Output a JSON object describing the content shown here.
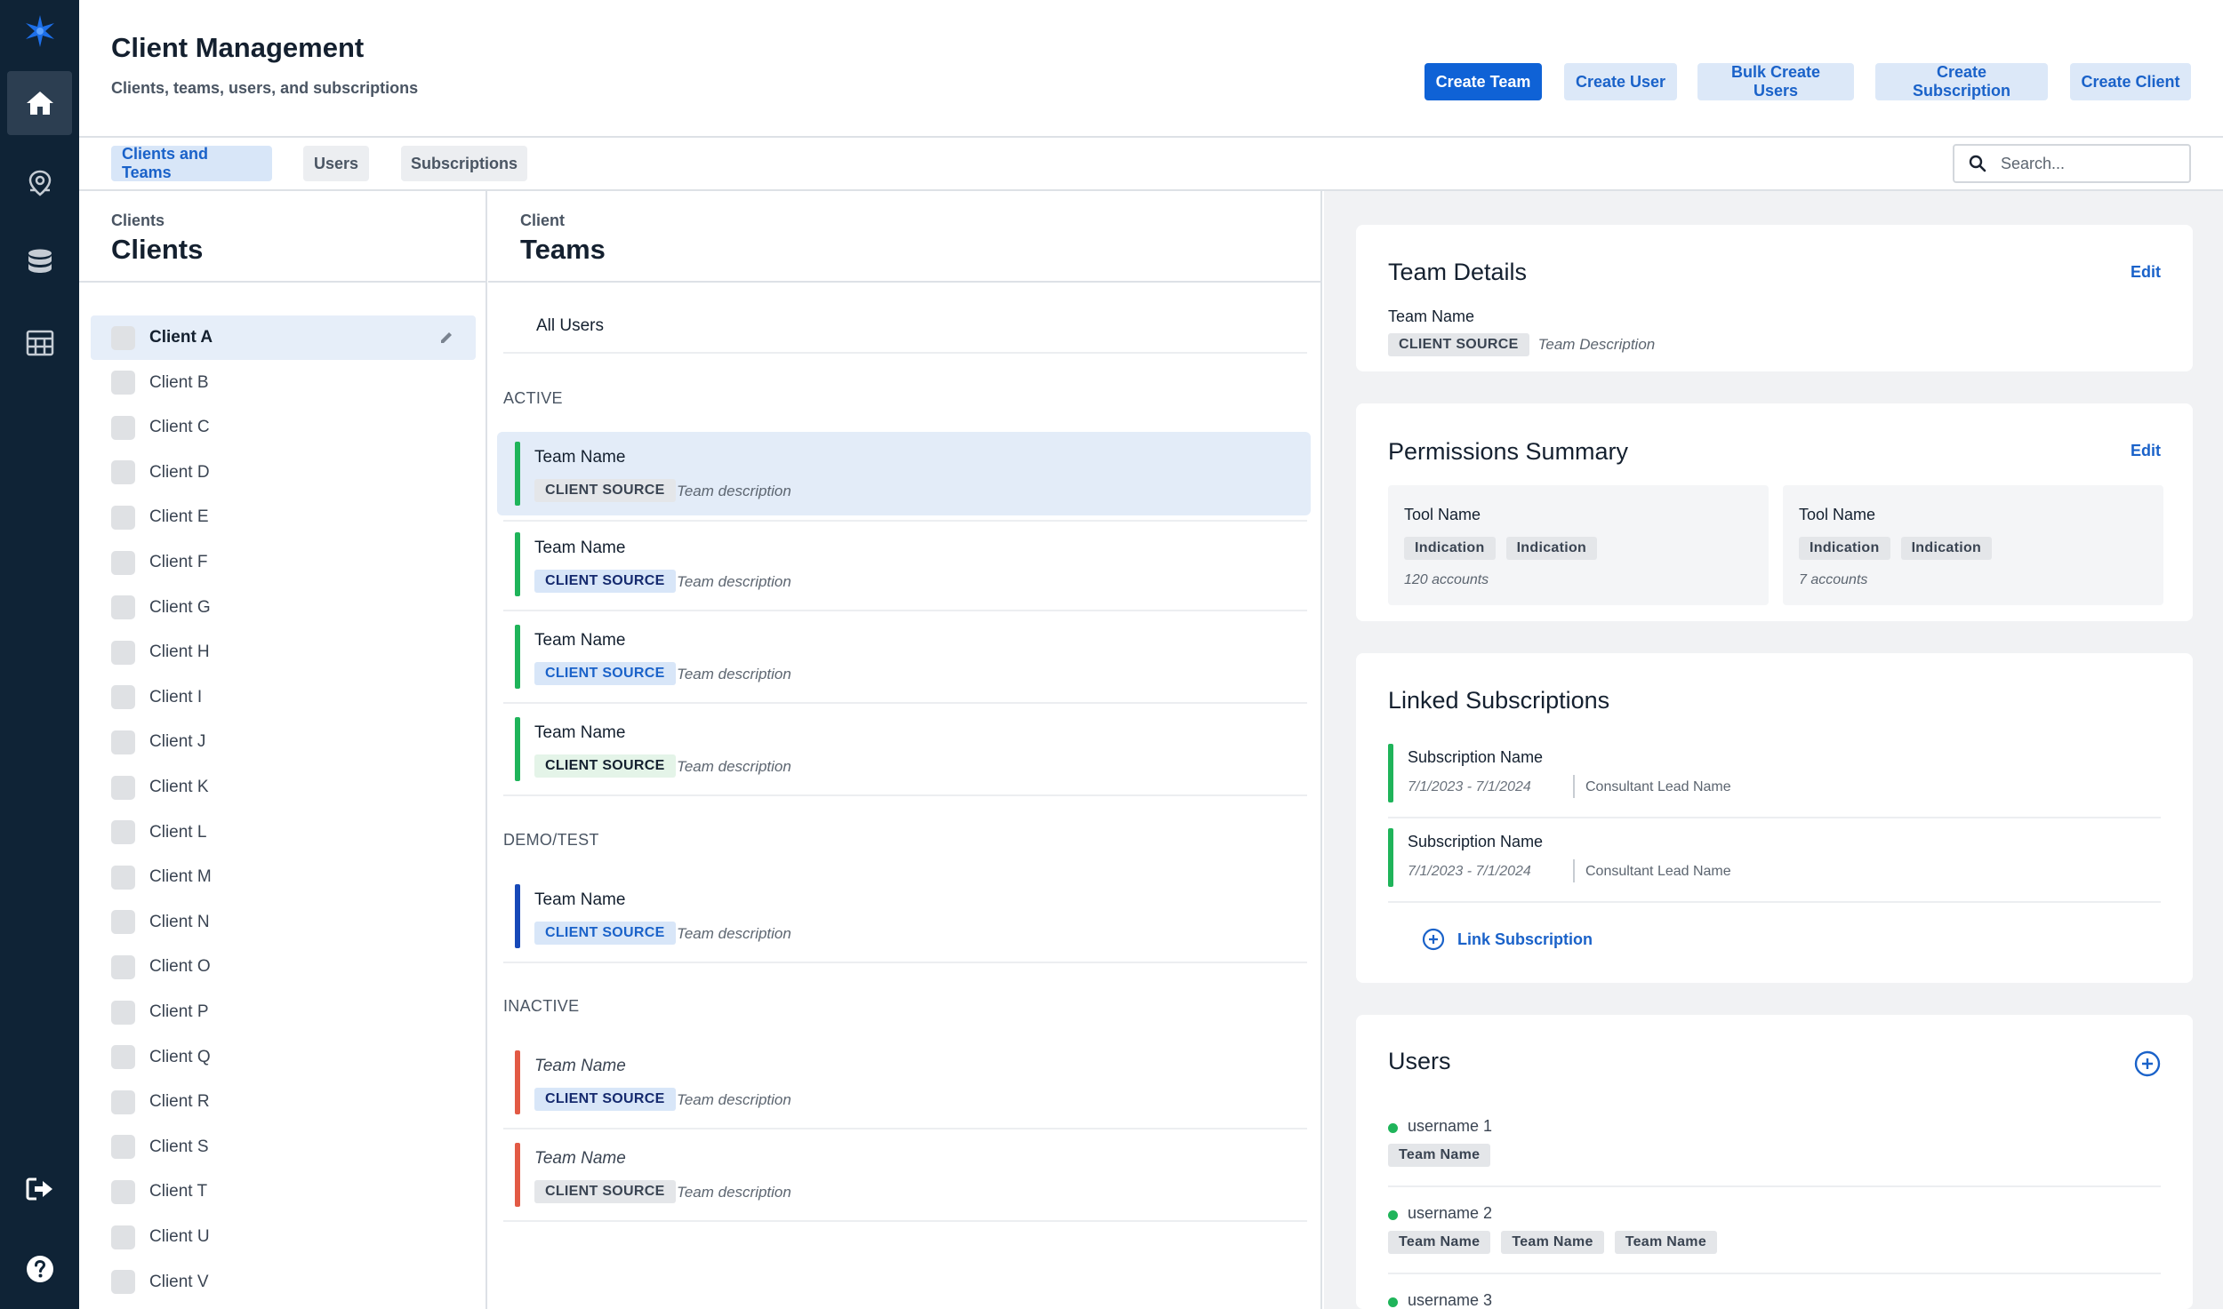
{
  "header": {
    "title": "Client Management",
    "subtitle": "Clients, teams, users, and subscriptions",
    "buttons": {
      "create_team": "Create Team",
      "create_user": "Create User",
      "bulk_create_users": "Bulk Create Users",
      "create_subscription": "Create Subscription",
      "create_client": "Create Client"
    }
  },
  "nav_icons": [
    "compass-star-logo",
    "home-icon",
    "location-badge-icon",
    "database-icon",
    "table-grid-icon",
    "logout-icon",
    "help-icon"
  ],
  "tabs": {
    "clients_and_teams": "Clients and Teams",
    "users": "Users",
    "subscriptions": "Subscriptions"
  },
  "search": {
    "placeholder": "Search...",
    "value": ""
  },
  "clients_panel": {
    "eyebrow": "Clients",
    "title": "Clients",
    "items": [
      "Client A",
      "Client B",
      "Client C",
      "Client D",
      "Client E",
      "Client F",
      "Client G",
      "Client H",
      "Client I",
      "Client J",
      "Client K",
      "Client L",
      "Client M",
      "Client N",
      "Client O",
      "Client P",
      "Client Q",
      "Client R",
      "Client S",
      "Client T",
      "Client U",
      "Client V"
    ],
    "selected": "Client A"
  },
  "teams_panel": {
    "eyebrow": "Client",
    "title": "Teams",
    "all_users": "All Users",
    "sections": {
      "active": "ACTIVE",
      "demo_test": "DEMO/TEST",
      "inactive": "INACTIVE"
    },
    "teams": [
      {
        "name": "Team Name",
        "source": "CLIENT SOURCE",
        "description": "Team description"
      },
      {
        "name": "Team Name",
        "source": "CLIENT SOURCE",
        "description": "Team description"
      },
      {
        "name": "Team Name",
        "source": "CLIENT SOURCE",
        "description": "Team description"
      },
      {
        "name": "Team Name",
        "source": "CLIENT SOURCE",
        "description": "Team description"
      },
      {
        "name": "Team Name",
        "source": "CLIENT SOURCE",
        "description": "Team description"
      },
      {
        "name": "Team Name",
        "source": "CLIENT SOURCE",
        "description": "Team description"
      },
      {
        "name": "Team Name",
        "source": "CLIENT SOURCE",
        "description": "Team description"
      }
    ]
  },
  "team_details": {
    "title": "Team Details",
    "edit": "Edit",
    "team_name": "Team Name",
    "source": "CLIENT SOURCE",
    "description": "Team Description"
  },
  "permissions": {
    "title": "Permissions Summary",
    "edit": "Edit",
    "tools": [
      {
        "name": "Tool Name",
        "tags": [
          "Indication",
          "Indication"
        ],
        "accounts": "120 accounts"
      },
      {
        "name": "Tool Name",
        "tags": [
          "Indication",
          "Indication"
        ],
        "accounts": "7 accounts"
      }
    ]
  },
  "linked_subscriptions": {
    "title": "Linked Subscriptions",
    "items": [
      {
        "name": "Subscription Name",
        "dates": "7/1/2023 - 7/1/2024",
        "lead": "Consultant Lead Name"
      },
      {
        "name": "Subscription Name",
        "dates": "7/1/2023 - 7/1/2024",
        "lead": "Consultant Lead Name"
      }
    ],
    "link_label": "Link Subscription"
  },
  "users": {
    "title": "Users",
    "items": [
      {
        "name": "username 1",
        "teams": [
          "Team Name"
        ]
      },
      {
        "name": "username 2",
        "teams": [
          "Team Name",
          "Team Name",
          "Team Name"
        ]
      },
      {
        "name": "username 3",
        "teams": []
      }
    ]
  },
  "colors": {
    "rail_bg": "#0f2336",
    "primary": "#0f62d6",
    "active_bar": "#1fb45a",
    "demo_bar": "#1749b8",
    "inactive_bar": "#e25a45"
  }
}
